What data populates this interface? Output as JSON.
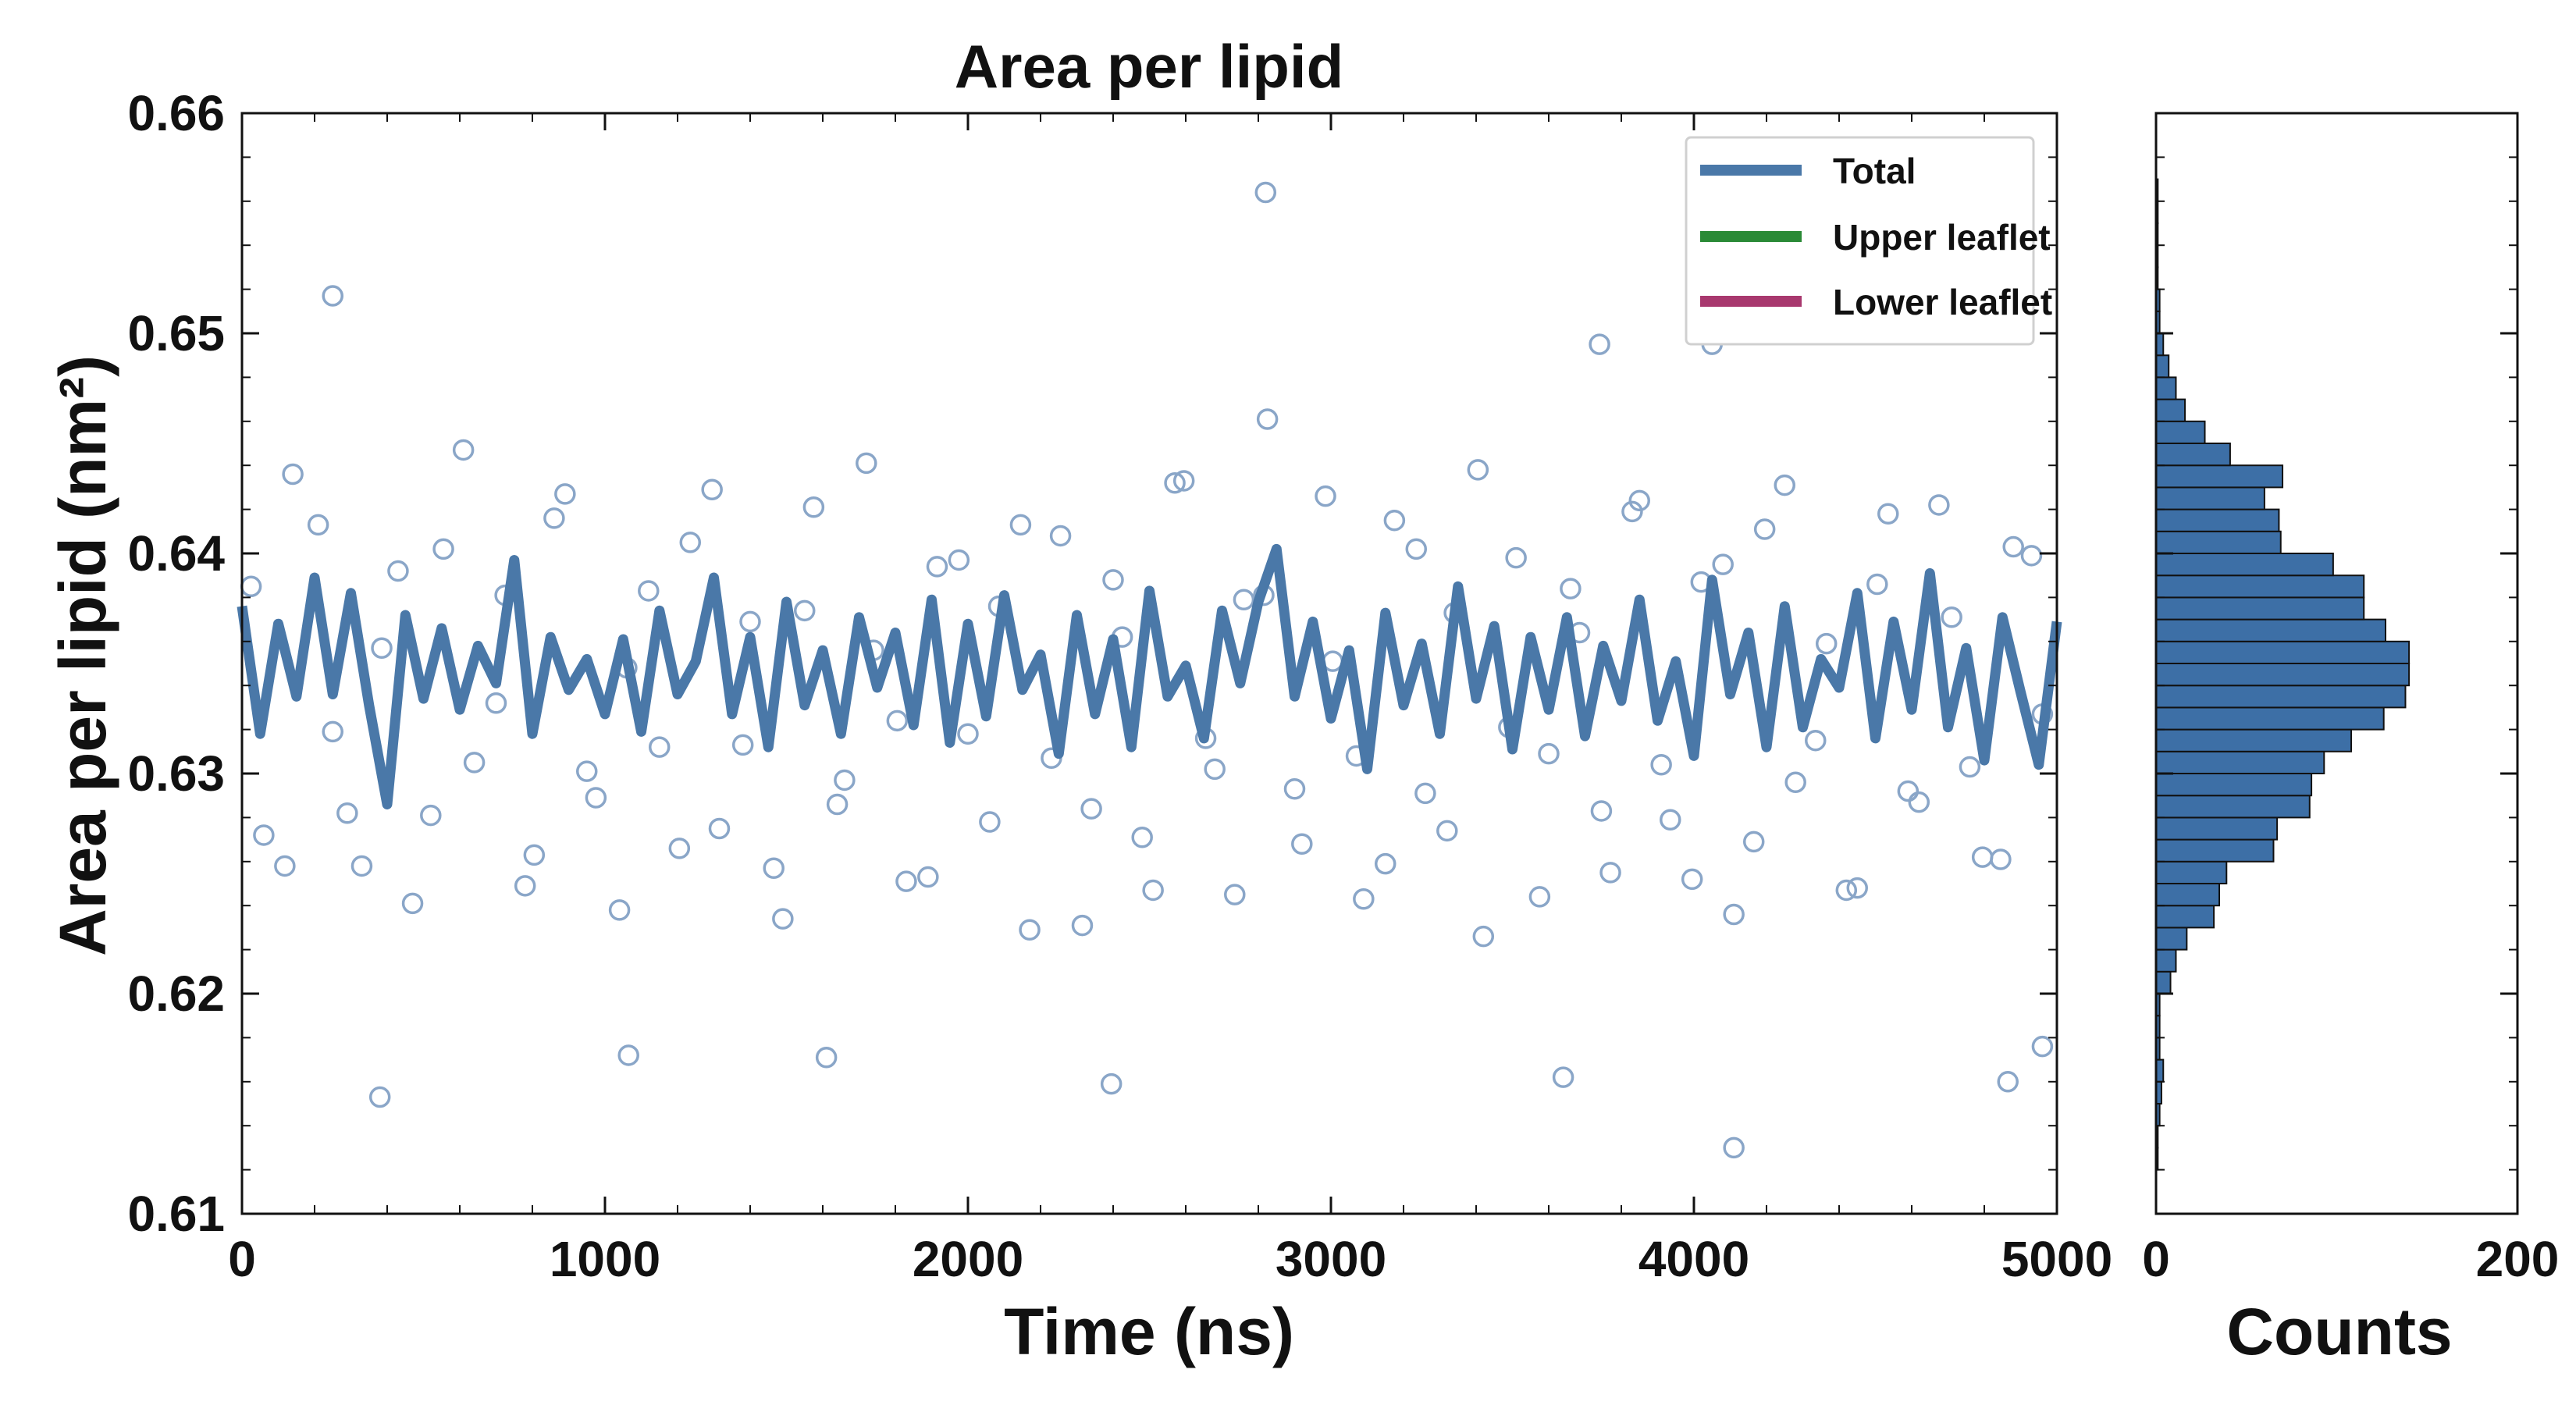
{
  "chart_data": [
    {
      "type": "scatter",
      "title": "Area per lipid",
      "xlabel": "Time (ns)",
      "ylabel": "Area per lipid (nm²)",
      "xlim": [
        0,
        5000
      ],
      "ylim": [
        0.61,
        0.66
      ],
      "xticks": [
        0,
        1000,
        2000,
        3000,
        4000,
        5000
      ],
      "yticks": [
        0.61,
        0.62,
        0.63,
        0.64,
        0.65,
        0.66
      ],
      "ytick_labels": [
        "0.61",
        "0.62",
        "0.63",
        "0.64",
        "0.65",
        "0.66"
      ],
      "grid": false,
      "legend_position": "top-right",
      "legend": [
        {
          "label": "Total",
          "color": "#4a78a8"
        },
        {
          "label": "Upper leaflet",
          "color": "#2a8a36"
        },
        {
          "label": "Lower leaflet",
          "color": "#a8386e"
        }
      ],
      "scatter_color": "#8aa6c8",
      "scatter_sample": {
        "x": [
          25,
          118,
          210,
          290,
          385,
          470,
          555,
          640,
          725,
          805,
          890,
          975,
          1060,
          1150,
          1235,
          1315,
          1400,
          1490,
          1575,
          1660,
          1740,
          1830,
          1915,
          2000,
          2085,
          2170,
          2255,
          2340,
          2425,
          2510,
          2595,
          2680,
          2760,
          2825,
          2920,
          3005,
          3090,
          3175,
          3260,
          3340,
          3420,
          3510,
          3600,
          3685,
          3770,
          3850,
          3935,
          4020,
          4110,
          4195,
          4280,
          4365,
          4450,
          4535,
          4620,
          4710,
          4795,
          4880,
          4960,
          60,
          140,
          250,
          330,
          430,
          520,
          610,
          700,
          780,
          860,
          950,
          1040,
          1120,
          1205,
          1295,
          1380,
          1465,
          1550,
          1640,
          1720,
          1805,
          1890,
          1975,
          2060,
          2145,
          2230,
          2315,
          2400,
          2480,
          2570,
          2655,
          2735,
          2815,
          2900,
          2985,
          3070,
          3150,
          3235,
          3320,
          3405,
          3490,
          3575,
          3660,
          3745,
          3830,
          3910,
          3995,
          4080,
          4165,
          4250,
          4335,
          4420,
          4505,
          4590,
          4675,
          4760,
          4845,
          4930,
          2820,
          250,
          4110,
          380,
          1065,
          1610,
          2395,
          4865,
          3640,
          3740,
          4050,
          4960
        ],
        "y": [
          0.6385,
          0.6258,
          0.6413,
          0.6282,
          0.6357,
          0.6241,
          0.6402,
          0.6305,
          0.6381,
          0.6263,
          0.6427,
          0.6289,
          0.6348,
          0.6312,
          0.6405,
          0.6275,
          0.6369,
          0.6234,
          0.6421,
          0.6297,
          0.6356,
          0.6251,
          0.6394,
          0.6318,
          0.6376,
          0.6229,
          0.6408,
          0.6284,
          0.6362,
          0.6247,
          0.6433,
          0.6302,
          0.6379,
          0.6461,
          0.6268,
          0.6351,
          0.6243,
          0.6415,
          0.6291,
          0.6373,
          0.6226,
          0.6398,
          0.6309,
          0.6364,
          0.6255,
          0.6424,
          0.6279,
          0.6387,
          0.6236,
          0.6411,
          0.6296,
          0.6359,
          0.6248,
          0.6418,
          0.6287,
          0.6371,
          0.6262,
          0.6403,
          0.6327,
          0.6272,
          0.6436,
          0.6319,
          0.6258,
          0.6392,
          0.6281,
          0.6447,
          0.6332,
          0.6249,
          0.6416,
          0.6301,
          0.6238,
          0.6383,
          0.6266,
          0.6429,
          0.6313,
          0.6257,
          0.6374,
          0.6286,
          0.6441,
          0.6324,
          0.6253,
          0.6397,
          0.6278,
          0.6413,
          0.6307,
          0.6231,
          0.6388,
          0.6271,
          0.6432,
          0.6316,
          0.6245,
          0.6381,
          0.6293,
          0.6426,
          0.6308,
          0.6259,
          0.6402,
          0.6274,
          0.6438,
          0.6321,
          0.6244,
          0.6384,
          0.6283,
          0.6419,
          0.6304,
          0.6252,
          0.6395,
          0.6269,
          0.6431,
          0.6315,
          0.6247,
          0.6386,
          0.6292,
          0.6422,
          0.6303,
          0.6261,
          0.6399,
          0.6564,
          0.6517,
          0.613,
          0.6153,
          0.6172,
          0.6171,
          0.6159,
          0.616,
          0.6162,
          0.6495,
          0.6495,
          0.6176
        ]
      },
      "series": [
        {
          "name": "Total",
          "color": "#4a78a8",
          "x": [
            0,
            50,
            100,
            150,
            200,
            250,
            300,
            350,
            400,
            450,
            500,
            550,
            600,
            650,
            700,
            750,
            800,
            850,
            900,
            950,
            1000,
            1050,
            1100,
            1150,
            1200,
            1250,
            1300,
            1350,
            1400,
            1450,
            1500,
            1550,
            1600,
            1650,
            1700,
            1750,
            1800,
            1850,
            1900,
            1950,
            2000,
            2050,
            2100,
            2150,
            2200,
            2250,
            2300,
            2350,
            2400,
            2450,
            2500,
            2550,
            2600,
            2650,
            2700,
            2750,
            2800,
            2850,
            2900,
            2950,
            3000,
            3050,
            3100,
            3150,
            3200,
            3250,
            3300,
            3350,
            3400,
            3450,
            3500,
            3550,
            3600,
            3650,
            3700,
            3750,
            3800,
            3850,
            3900,
            3950,
            4000,
            4050,
            4100,
            4150,
            4200,
            4250,
            4300,
            4350,
            4400,
            4450,
            4500,
            4550,
            4600,
            4650,
            4700,
            4750,
            4800,
            4850,
            4900,
            4950,
            5000
          ],
          "y": [
            0.6376,
            0.6318,
            0.6368,
            0.6335,
            0.6389,
            0.6336,
            0.6382,
            0.6331,
            0.6286,
            0.6372,
            0.6334,
            0.6366,
            0.6329,
            0.6358,
            0.6341,
            0.6397,
            0.6318,
            0.6362,
            0.6338,
            0.6352,
            0.6327,
            0.6361,
            0.6319,
            0.6374,
            0.6336,
            0.6351,
            0.6389,
            0.6327,
            0.6362,
            0.6312,
            0.6378,
            0.6331,
            0.6356,
            0.6318,
            0.6371,
            0.6339,
            0.6364,
            0.6322,
            0.6379,
            0.6314,
            0.6368,
            0.6326,
            0.6381,
            0.6338,
            0.6354,
            0.6309,
            0.6372,
            0.6327,
            0.6361,
            0.6312,
            0.6383,
            0.6335,
            0.6349,
            0.6316,
            0.6374,
            0.6341,
            0.6378,
            0.6402,
            0.6335,
            0.6369,
            0.6325,
            0.6356,
            0.6302,
            0.6373,
            0.6331,
            0.6359,
            0.6318,
            0.6385,
            0.6334,
            0.6367,
            0.6311,
            0.6362,
            0.6329,
            0.6371,
            0.6317,
            0.6358,
            0.6333,
            0.6379,
            0.6324,
            0.6351,
            0.6308,
            0.6388,
            0.6336,
            0.6364,
            0.6312,
            0.6376,
            0.6321,
            0.6352,
            0.6339,
            0.6382,
            0.6316,
            0.6369,
            0.6329,
            0.6391,
            0.6321,
            0.6357,
            0.6306,
            0.6371,
            0.6337,
            0.6304,
            0.6369
          ]
        }
      ]
    },
    {
      "type": "bar",
      "orientation": "horizontal",
      "xlabel": "Counts",
      "xlim": [
        0,
        200
      ],
      "xticks": [
        0,
        200
      ],
      "ylim": [
        0.61,
        0.66
      ],
      "bar_color": "#3d6fa6",
      "bin_width": 0.001,
      "bin_starts": [
        0.612,
        0.613,
        0.614,
        0.615,
        0.616,
        0.617,
        0.618,
        0.619,
        0.62,
        0.621,
        0.622,
        0.623,
        0.624,
        0.625,
        0.626,
        0.627,
        0.628,
        0.629,
        0.63,
        0.631,
        0.632,
        0.633,
        0.634,
        0.635,
        0.636,
        0.637,
        0.638,
        0.639,
        0.64,
        0.641,
        0.642,
        0.643,
        0.644,
        0.645,
        0.646,
        0.647,
        0.648,
        0.649,
        0.65,
        0.651,
        0.652,
        0.653,
        0.654,
        0.655,
        0.656
      ],
      "values": [
        1,
        1,
        2,
        3,
        4,
        2,
        2,
        2,
        8,
        11,
        17,
        32,
        35,
        39,
        65,
        67,
        85,
        86,
        93,
        108,
        126,
        138,
        140,
        140,
        127,
        115,
        115,
        98,
        69,
        68,
        60,
        70,
        41,
        27,
        16,
        11,
        7,
        4,
        2,
        2,
        1,
        1,
        1,
        1,
        1
      ]
    }
  ]
}
